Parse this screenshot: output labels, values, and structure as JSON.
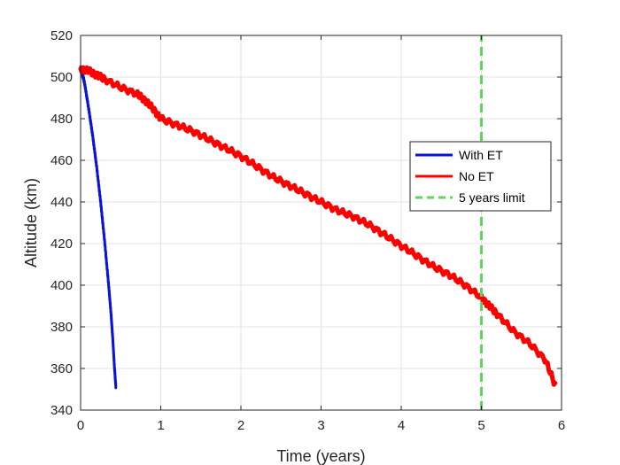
{
  "chart_data": {
    "type": "line",
    "title": "",
    "xlabel": "Time (years)",
    "ylabel": "Altitude (km)",
    "xlim": [
      0,
      6
    ],
    "ylim": [
      340,
      520
    ],
    "xticks": [
      0,
      1,
      2,
      3,
      4,
      5,
      6
    ],
    "yticks": [
      340,
      360,
      380,
      400,
      420,
      440,
      460,
      480,
      500,
      520
    ],
    "grid": true,
    "legend_position": "right",
    "series": [
      {
        "name": "With ET",
        "color": "#0a14d6",
        "band": 2.0,
        "x": [
          0,
          0.05,
          0.1,
          0.15,
          0.2,
          0.25,
          0.3,
          0.35,
          0.38,
          0.4,
          0.42,
          0.44
        ],
        "y": [
          505,
          497,
          485,
          472,
          457,
          440,
          421,
          400,
          386,
          375,
          362,
          351
        ]
      },
      {
        "name": "No ET",
        "color": "#ff0000",
        "band": 3.5,
        "x": [
          0,
          0.1,
          0.2,
          0.3,
          0.5,
          0.7,
          0.8,
          0.9,
          1.0,
          1.2,
          1.4,
          1.6,
          1.8,
          2.0,
          2.2,
          2.4,
          2.6,
          2.8,
          3.0,
          3.2,
          3.4,
          3.6,
          3.8,
          4.0,
          4.2,
          4.4,
          4.6,
          4.8,
          5.0,
          5.1,
          5.2,
          5.4,
          5.6,
          5.8,
          5.92
        ],
        "y": [
          504,
          503,
          501,
          499,
          495,
          492,
          489,
          485,
          480,
          477,
          474,
          470,
          466,
          462,
          457,
          452,
          448,
          444,
          440,
          436,
          433,
          429,
          424,
          419,
          414,
          409,
          405,
          400,
          394,
          390,
          386,
          378,
          372,
          364,
          352
        ]
      },
      {
        "name": "5 years limit",
        "color": "#5ed65e",
        "dashed": true,
        "x": [
          5,
          5
        ],
        "y": [
          340,
          520
        ]
      }
    ]
  }
}
